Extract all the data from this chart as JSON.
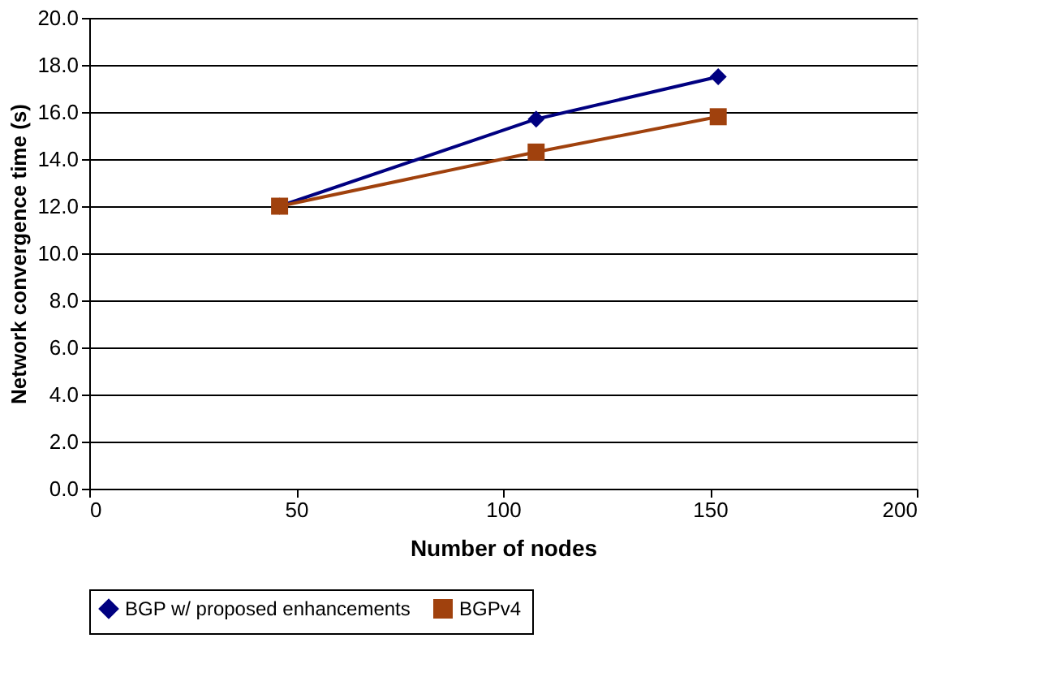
{
  "chart_data": {
    "type": "line",
    "xlabel": "Number of nodes",
    "ylabel": "Network convergence time (s)",
    "xlim": [
      0,
      200
    ],
    "xticks": [
      0,
      50,
      100,
      150,
      200
    ],
    "ylim": [
      0,
      20
    ],
    "yticks": [
      {
        "value": 0,
        "label": "0.0"
      },
      {
        "value": 2,
        "label": "2.0"
      },
      {
        "value": 4,
        "label": "4.0"
      },
      {
        "value": 6,
        "label": "6.0"
      },
      {
        "value": 8,
        "label": "8.0"
      },
      {
        "value": 10,
        "label": "10.0"
      },
      {
        "value": 12,
        "label": "12.0"
      },
      {
        "value": 14,
        "label": "14.0"
      },
      {
        "value": 16,
        "label": "16.0"
      },
      {
        "value": 18,
        "label": "18.0"
      },
      {
        "value": 20,
        "label": "20.0"
      }
    ],
    "grid": "y",
    "legend": "bottom",
    "line_style": "solid",
    "series": [
      {
        "name": "BGP w/ proposed enhancements",
        "color": "#000080",
        "marker": "diamond",
        "x": [
          46,
          108,
          152
        ],
        "values": [
          12.0,
          15.7,
          17.5
        ]
      },
      {
        "name": "BGPv4",
        "color": "#a0410d",
        "marker": "square",
        "x": [
          46,
          108,
          152
        ],
        "values": [
          12.0,
          14.3,
          15.8
        ]
      }
    ]
  }
}
